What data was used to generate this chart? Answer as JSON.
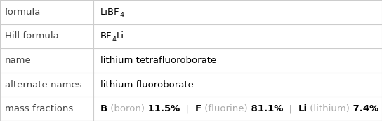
{
  "rows": [
    {
      "label": "formula",
      "type": "formula"
    },
    {
      "label": "Hill formula",
      "type": "hill"
    },
    {
      "label": "name",
      "type": "text",
      "value": "lithium tetrafluoroborate"
    },
    {
      "label": "alternate names",
      "type": "text",
      "value": "lithium fluoroborate"
    },
    {
      "label": "mass fractions",
      "type": "mass_fractions"
    }
  ],
  "mass_fractions": [
    {
      "element": "B",
      "name": "boron",
      "value": "11.5%"
    },
    {
      "element": "F",
      "name": "fluorine",
      "value": "81.1%"
    },
    {
      "element": "Li",
      "name": "lithium",
      "value": "7.4%"
    }
  ],
  "col_split": 0.245,
  "border_color": "#cccccc",
  "label_color": "#444444",
  "value_color": "#000000",
  "element_color": "#000000",
  "element_name_color": "#aaaaaa",
  "separator_color": "#aaaaaa",
  "bg_color": "#ffffff",
  "font_size": 9.5
}
